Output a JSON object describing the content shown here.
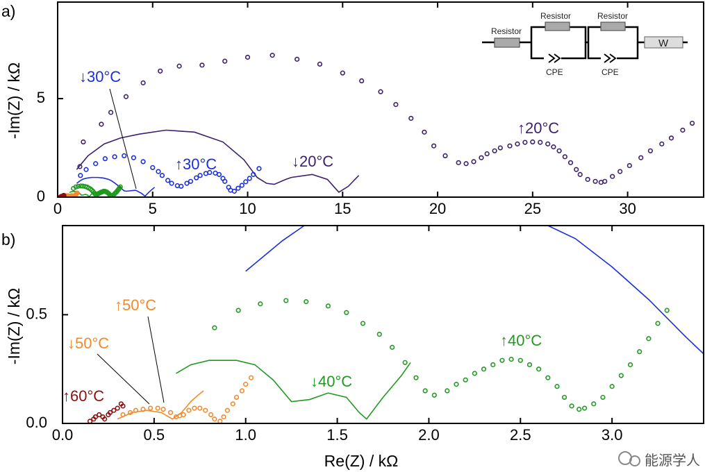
{
  "chart_data": [
    {
      "panel_label": "a)",
      "type": "scatter",
      "xlabel": "",
      "ylabel": "-Im(Z) / kΩ",
      "xlim": [
        0,
        34
      ],
      "ylim": [
        0,
        9.9
      ],
      "xticks": [
        0,
        5,
        10,
        15,
        20,
        25,
        30
      ],
      "yticks": [
        0,
        5
      ],
      "grid": false,
      "annotations": [
        {
          "text": "↓30°C",
          "series": "down30"
        },
        {
          "text": "↑30°C",
          "series": "up30"
        },
        {
          "text": "↓20°C",
          "series": "down20"
        },
        {
          "text": "↑20°C",
          "series": "up20"
        }
      ],
      "inset_circuit": {
        "elements": [
          "Resistor",
          "Resistor",
          "CPE",
          "Resistor",
          "CPE",
          "W"
        ]
      }
    },
    {
      "panel_label": "b)",
      "type": "scatter",
      "xlabel": "Re(Z) / kΩ",
      "ylabel": "-Im(Z) / kΩ",
      "xlim": [
        0,
        3.5
      ],
      "ylim": [
        0,
        0.91
      ],
      "xticks": [
        "0.0",
        "0.5",
        "1.0",
        "1.5",
        "2.0",
        "2.5",
        "3.0"
      ],
      "yticks": [
        "0.0",
        "0.5"
      ],
      "grid": false,
      "annotations": [
        {
          "text": "↑50°C",
          "series": "up50"
        },
        {
          "text": "↓50°C",
          "series": "down50"
        },
        {
          "text": "↑60°C",
          "series": "up60"
        },
        {
          "text": "↓40°C",
          "series": "down40"
        },
        {
          "text": "↑40°C",
          "series": "up40"
        }
      ]
    }
  ],
  "series": [
    {
      "id": "up20",
      "style": "markers",
      "color": "#3b1f6e",
      "points": [
        [
          1.17,
          1.55
        ],
        [
          1.35,
          2.8
        ],
        [
          2.3,
          3.7
        ],
        [
          2.8,
          4.3
        ],
        [
          3.6,
          5.1
        ],
        [
          4.5,
          5.8
        ],
        [
          5.4,
          6.4
        ],
        [
          6.4,
          6.65
        ],
        [
          7.6,
          6.7
        ],
        [
          8.8,
          6.9
        ],
        [
          10,
          7.1
        ],
        [
          11.3,
          7.2
        ],
        [
          12.6,
          7.0
        ],
        [
          13.8,
          6.75
        ],
        [
          15,
          6.3
        ],
        [
          16,
          5.9
        ],
        [
          17,
          5.35
        ],
        [
          17.8,
          4.7
        ],
        [
          18.6,
          4.0
        ],
        [
          19.3,
          3.3
        ],
        [
          19.8,
          2.6
        ],
        [
          20.4,
          2.1
        ],
        [
          21.1,
          1.75
        ],
        [
          21.5,
          1.7
        ],
        [
          21.9,
          1.8
        ],
        [
          22.3,
          2.0
        ],
        [
          22.6,
          2.2
        ],
        [
          23.0,
          2.35
        ],
        [
          23.3,
          2.5
        ],
        [
          23.8,
          2.6
        ],
        [
          24.2,
          2.7
        ],
        [
          24.6,
          2.78
        ],
        [
          25,
          2.8
        ],
        [
          25.4,
          2.78
        ],
        [
          25.8,
          2.7
        ],
        [
          26.1,
          2.55
        ],
        [
          26.4,
          2.35
        ],
        [
          26.7,
          2.05
        ],
        [
          27,
          1.75
        ],
        [
          27.3,
          1.4
        ],
        [
          27.5,
          1.15
        ],
        [
          27.9,
          0.9
        ],
        [
          28.3,
          0.8
        ],
        [
          28.6,
          0.75
        ],
        [
          28.8,
          0.8
        ],
        [
          29.2,
          1.05
        ],
        [
          29.6,
          1.3
        ],
        [
          30.1,
          1.6
        ],
        [
          30.7,
          2.0
        ],
        [
          31.2,
          2.35
        ],
        [
          31.8,
          2.7
        ],
        [
          32.3,
          3.0
        ],
        [
          32.9,
          3.4
        ],
        [
          33.4,
          3.75
        ]
      ]
    },
    {
      "id": "down20",
      "style": "line",
      "color": "#3b1f6e",
      "points": [
        [
          1.0,
          1.4
        ],
        [
          1.6,
          2.1
        ],
        [
          2.45,
          2.7
        ],
        [
          3.3,
          3.0
        ],
        [
          4.3,
          3.2
        ],
        [
          5.7,
          3.4
        ],
        [
          7.2,
          3.3
        ],
        [
          8.7,
          2.8
        ],
        [
          9.8,
          1.9
        ],
        [
          10.5,
          1.0
        ],
        [
          11.0,
          0.7
        ],
        [
          11.4,
          0.65
        ],
        [
          12.0,
          0.9
        ],
        [
          12.3,
          1.0
        ],
        [
          13.4,
          1.15
        ],
        [
          14.2,
          0.9
        ],
        [
          14.8,
          0.25
        ],
        [
          15.3,
          0.55
        ],
        [
          15.85,
          1.1
        ]
      ]
    },
    {
      "id": "up30",
      "style": "markers",
      "color": "#1a2fd8",
      "points": [
        [
          1.2,
          1.1
        ],
        [
          1.5,
          1.4
        ],
        [
          2.0,
          1.7
        ],
        [
          2.5,
          1.95
        ],
        [
          3.0,
          2.05
        ],
        [
          3.5,
          2.1
        ],
        [
          4.0,
          2.0
        ],
        [
          4.5,
          1.8
        ],
        [
          5.0,
          1.5
        ],
        [
          5.3,
          1.3
        ],
        [
          5.5,
          1.1
        ],
        [
          5.8,
          0.85
        ],
        [
          6.0,
          0.7
        ],
        [
          6.3,
          0.58
        ],
        [
          6.5,
          0.55
        ],
        [
          6.8,
          0.7
        ],
        [
          7.0,
          0.8
        ],
        [
          7.3,
          0.98
        ],
        [
          7.5,
          1.1
        ],
        [
          7.8,
          1.2
        ],
        [
          8.0,
          1.25
        ],
        [
          8.3,
          1.22
        ],
        [
          8.5,
          1.15
        ],
        [
          8.7,
          0.95
        ],
        [
          8.8,
          0.8
        ],
        [
          9.0,
          0.5
        ],
        [
          9.1,
          0.35
        ],
        [
          9.3,
          0.3
        ],
        [
          9.5,
          0.45
        ],
        [
          9.7,
          0.6
        ],
        [
          9.9,
          0.78
        ],
        [
          10.1,
          0.95
        ],
        [
          10.3,
          1.15
        ],
        [
          10.6,
          1.45
        ]
      ]
    },
    {
      "id": "down30",
      "style": "line",
      "color": "#1a2fd8",
      "points": [
        [
          1.0,
          0.7
        ],
        [
          1.1,
          0.77
        ],
        [
          1.2,
          0.84
        ],
        [
          1.32,
          0.91
        ],
        [
          1.5,
          0.96
        ],
        [
          1.8,
          1.0
        ],
        [
          2.1,
          1.0
        ],
        [
          2.4,
          0.97
        ],
        [
          2.65,
          0.91
        ],
        [
          2.8,
          0.85
        ],
        [
          3.0,
          0.72
        ],
        [
          3.2,
          0.57
        ],
        [
          3.4,
          0.4
        ],
        [
          3.5,
          0.32
        ],
        [
          3.6,
          0.3
        ],
        [
          4.1,
          0.35
        ],
        [
          4.4,
          0.2
        ],
        [
          4.6,
          0.05
        ],
        [
          4.8,
          0.25
        ],
        [
          5.1,
          0.5
        ]
      ]
    },
    {
      "id": "up40",
      "style": "markers",
      "color": "#1f9a1f",
      "points": [
        [
          0.83,
          0.44
        ],
        [
          0.96,
          0.52
        ],
        [
          1.08,
          0.55
        ],
        [
          1.22,
          0.565
        ],
        [
          1.33,
          0.56
        ],
        [
          1.45,
          0.54
        ],
        [
          1.55,
          0.51
        ],
        [
          1.64,
          0.46
        ],
        [
          1.73,
          0.41
        ],
        [
          1.8,
          0.35
        ],
        [
          1.87,
          0.28
        ],
        [
          1.93,
          0.21
        ],
        [
          1.98,
          0.15
        ],
        [
          2.03,
          0.13
        ],
        [
          2.1,
          0.15
        ],
        [
          2.15,
          0.18
        ],
        [
          2.2,
          0.2
        ],
        [
          2.25,
          0.23
        ],
        [
          2.3,
          0.25
        ],
        [
          2.35,
          0.27
        ],
        [
          2.4,
          0.29
        ],
        [
          2.45,
          0.295
        ],
        [
          2.5,
          0.29
        ],
        [
          2.55,
          0.27
        ],
        [
          2.6,
          0.25
        ],
        [
          2.65,
          0.21
        ],
        [
          2.7,
          0.17
        ],
        [
          2.74,
          0.12
        ],
        [
          2.78,
          0.08
        ],
        [
          2.82,
          0.065
        ],
        [
          2.85,
          0.07
        ],
        [
          2.9,
          0.09
        ],
        [
          2.95,
          0.12
        ],
        [
          3.0,
          0.17
        ],
        [
          3.05,
          0.22
        ],
        [
          3.1,
          0.27
        ],
        [
          3.15,
          0.33
        ],
        [
          3.2,
          0.39
        ],
        [
          3.25,
          0.46
        ],
        [
          3.3,
          0.52
        ]
      ]
    },
    {
      "id": "down40",
      "style": "line",
      "color": "#1f9a1f",
      "points": [
        [
          0.62,
          0.23
        ],
        [
          0.7,
          0.27
        ],
        [
          0.8,
          0.29
        ],
        [
          0.95,
          0.29
        ],
        [
          1.05,
          0.27
        ],
        [
          1.15,
          0.2
        ],
        [
          1.25,
          0.1
        ],
        [
          1.35,
          0.11
        ],
        [
          1.45,
          0.14
        ],
        [
          1.55,
          0.12
        ],
        [
          1.62,
          0.05
        ],
        [
          1.66,
          0.02
        ],
        [
          1.75,
          0.12
        ],
        [
          1.85,
          0.22
        ],
        [
          1.9,
          0.28
        ]
      ]
    },
    {
      "id": "up50",
      "style": "markers",
      "color": "#f08a2c",
      "points": [
        [
          0.33,
          0.04
        ],
        [
          0.37,
          0.05
        ],
        [
          0.4,
          0.06
        ],
        [
          0.44,
          0.065
        ],
        [
          0.48,
          0.07
        ],
        [
          0.52,
          0.07
        ],
        [
          0.55,
          0.065
        ],
        [
          0.59,
          0.05
        ],
        [
          0.62,
          0.03
        ],
        [
          0.64,
          0.035
        ],
        [
          0.66,
          0.04
        ],
        [
          0.69,
          0.06
        ],
        [
          0.72,
          0.07
        ],
        [
          0.75,
          0.07
        ],
        [
          0.78,
          0.06
        ],
        [
          0.81,
          0.04
        ],
        [
          0.83,
          0.02
        ],
        [
          0.86,
          0.01
        ],
        [
          0.88,
          0.03
        ],
        [
          0.9,
          0.06
        ],
        [
          0.93,
          0.09
        ],
        [
          0.95,
          0.12
        ],
        [
          0.98,
          0.15
        ],
        [
          1.0,
          0.18
        ],
        [
          1.03,
          0.21
        ]
      ]
    },
    {
      "id": "down50",
      "style": "line",
      "color": "#f08a2c",
      "points": [
        [
          0.3,
          0.02
        ],
        [
          0.38,
          0.05
        ],
        [
          0.46,
          0.06
        ],
        [
          0.54,
          0.05
        ],
        [
          0.6,
          0.02
        ],
        [
          0.65,
          0.05
        ],
        [
          0.7,
          0.1
        ],
        [
          0.74,
          0.13
        ],
        [
          0.77,
          0.15
        ]
      ]
    },
    {
      "id": "up60",
      "style": "markers",
      "color": "#8b1010",
      "points": [
        [
          0.15,
          0.01
        ],
        [
          0.17,
          0.02
        ],
        [
          0.18,
          0.03
        ],
        [
          0.2,
          0.04
        ],
        [
          0.22,
          0.03
        ],
        [
          0.23,
          0.02
        ],
        [
          0.25,
          0.04
        ],
        [
          0.26,
          0.05
        ],
        [
          0.28,
          0.06
        ],
        [
          0.3,
          0.07
        ],
        [
          0.32,
          0.09
        ],
        [
          0.33,
          0.08
        ]
      ]
    }
  ],
  "watermark": "能源学人"
}
